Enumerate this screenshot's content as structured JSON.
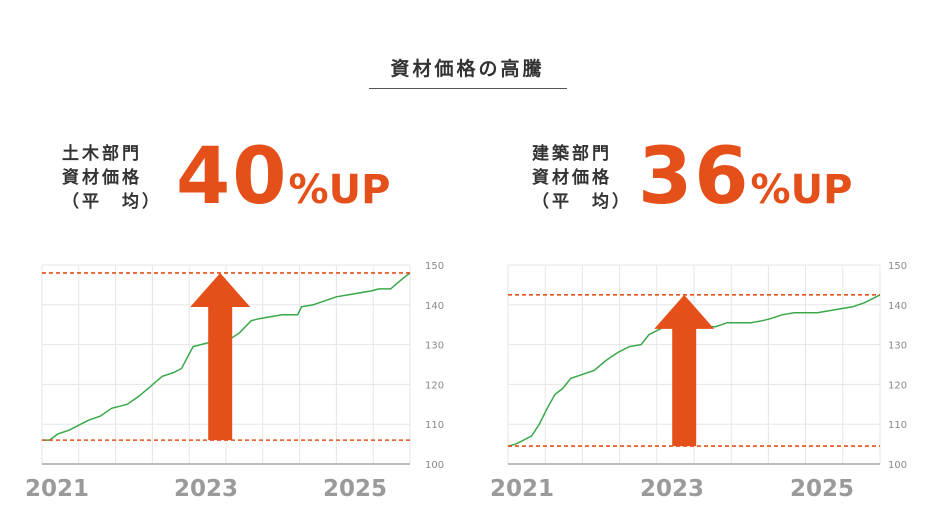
{
  "header": {
    "title": "資材価格の高騰"
  },
  "colors": {
    "accent": "#e5501a",
    "line": "#3aa84a",
    "grid": "#e6e6e6"
  },
  "chart_data": [
    {
      "type": "line",
      "category": [
        "土木部門",
        "資材価格",
        "（平　均）"
      ],
      "headline": {
        "value": "40",
        "suffix": "%UP"
      },
      "x_ticks": [
        "2021",
        "2023",
        "2025"
      ],
      "y_ticks": [
        100,
        110,
        120,
        130,
        140,
        150
      ],
      "xlim": [
        2021.0,
        2025.75
      ],
      "ylim": [
        100,
        150
      ],
      "reference_lines": [
        106,
        148
      ],
      "arrow": {
        "x": 2023.3,
        "from": 106,
        "to": 148
      },
      "series": [
        {
          "x": [
            2021.0,
            2021.1,
            2021.2,
            2021.35,
            2021.5,
            2021.6,
            2021.75,
            2021.9,
            2022.0,
            2022.1,
            2022.25,
            2022.4,
            2022.55,
            2022.7,
            2022.8,
            2022.95,
            2023.05,
            2023.15,
            2023.3,
            2023.4,
            2023.55,
            2023.7,
            2023.8,
            2023.95,
            2024.1,
            2024.3,
            2024.35,
            2024.5,
            2024.65,
            2024.8,
            2024.95,
            2025.1,
            2025.25,
            2025.35,
            2025.5,
            2025.65,
            2025.75
          ],
          "y": [
            106,
            106,
            107.5,
            108.5,
            110,
            111,
            112,
            114,
            114.5,
            115,
            117,
            119.5,
            122,
            123,
            124,
            129.5,
            130,
            130.5,
            130.5,
            131,
            133,
            136,
            136.5,
            137,
            137.5,
            137.5,
            139.5,
            140,
            141,
            142,
            142.5,
            143,
            143.5,
            144,
            144,
            146.5,
            148
          ]
        }
      ]
    },
    {
      "type": "line",
      "category": [
        "建築部門",
        "資材価格",
        "（平　均）"
      ],
      "headline": {
        "value": "36",
        "suffix": "%UP"
      },
      "x_ticks": [
        "2021",
        "2023",
        "2025"
      ],
      "y_ticks": [
        100,
        110,
        120,
        130,
        140,
        150
      ],
      "xlim": [
        2021.0,
        2025.75
      ],
      "ylim": [
        100,
        150
      ],
      "reference_lines": [
        104.5,
        142.5
      ],
      "arrow": {
        "x": 2023.25,
        "from": 104.5,
        "to": 142.5
      },
      "series": [
        {
          "x": [
            2021.0,
            2021.1,
            2021.2,
            2021.3,
            2021.4,
            2021.5,
            2021.6,
            2021.7,
            2021.8,
            2021.95,
            2022.1,
            2022.25,
            2022.4,
            2022.55,
            2022.7,
            2022.8,
            2022.95,
            2023.05,
            2023.2,
            2023.35,
            2023.5,
            2023.65,
            2023.8,
            2023.95,
            2024.1,
            2024.25,
            2024.35,
            2024.5,
            2024.65,
            2024.8,
            2024.95,
            2025.1,
            2025.25,
            2025.4,
            2025.55,
            2025.75
          ],
          "y": [
            104.5,
            105,
            106,
            107,
            110,
            114,
            117.5,
            119,
            121.5,
            122.5,
            123.5,
            126,
            128,
            129.5,
            130,
            132.5,
            134,
            135,
            133.5,
            134,
            134.5,
            134.5,
            135.5,
            135.5,
            135.5,
            136,
            136.5,
            137.5,
            138,
            138,
            138,
            138.5,
            139,
            139.5,
            140.5,
            142.5
          ]
        }
      ]
    }
  ]
}
